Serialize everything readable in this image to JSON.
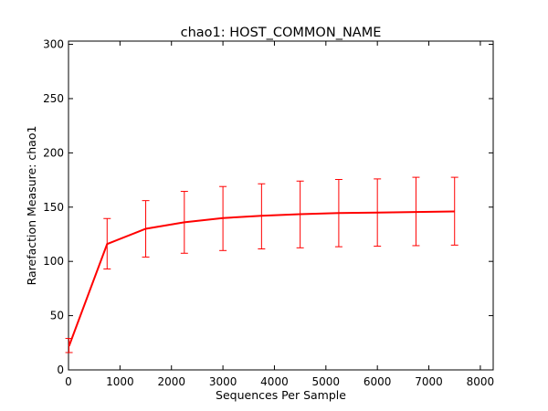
{
  "chart_data": {
    "type": "line",
    "title": "chao1: HOST_COMMON_NAME",
    "xlabel": "Sequences Per Sample",
    "ylabel": "Rarefaction Measure: chao1",
    "xlim": [
      0,
      8250
    ],
    "ylim": [
      0,
      303
    ],
    "xticks": [
      0,
      1000,
      2000,
      3000,
      4000,
      5000,
      6000,
      7000,
      8000
    ],
    "yticks": [
      0,
      50,
      100,
      150,
      200,
      250,
      300
    ],
    "grid": false,
    "legend": "none",
    "series_color": "#ff0000",
    "series": [
      {
        "x": [
          10,
          750,
          1500,
          2250,
          3000,
          3750,
          4500,
          5250,
          6000,
          6750,
          7500
        ],
        "y": [
          22,
          116,
          130,
          136,
          140,
          142,
          143.5,
          144.5,
          145,
          145.5,
          146
        ],
        "err_low": [
          16,
          93,
          104,
          107.5,
          110,
          111.5,
          112.5,
          113.5,
          114,
          114.5,
          115
        ],
        "err_high": [
          29,
          139.5,
          156,
          164.5,
          169,
          171.5,
          174,
          175.5,
          176,
          177.5,
          177.5
        ]
      }
    ]
  }
}
